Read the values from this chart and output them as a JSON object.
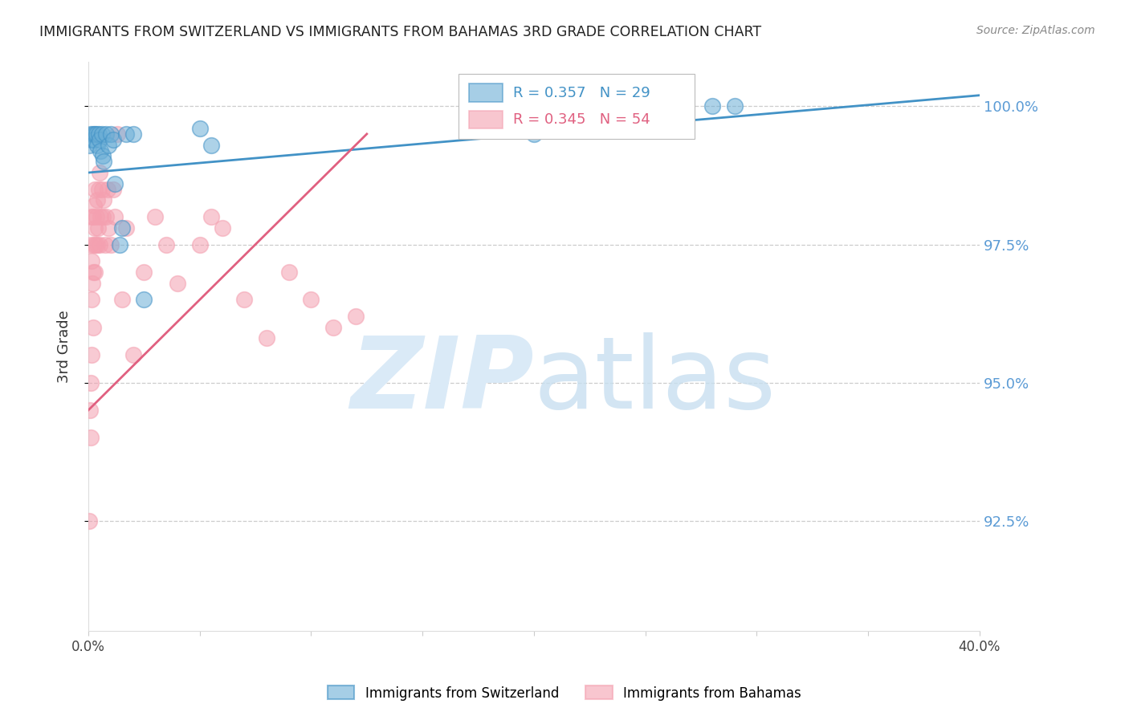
{
  "title": "IMMIGRANTS FROM SWITZERLAND VS IMMIGRANTS FROM BAHAMAS 3RD GRADE CORRELATION CHART",
  "source": "Source: ZipAtlas.com",
  "ylabel": "3rd Grade",
  "y_ticks": [
    92.5,
    95.0,
    97.5,
    100.0
  ],
  "y_tick_labels": [
    "92.5%",
    "95.0%",
    "97.5%",
    "100.0%"
  ],
  "x_min": 0.0,
  "x_max": 40.0,
  "y_min": 90.5,
  "y_max": 100.8,
  "R_switzerland": 0.357,
  "N_switzerland": 29,
  "R_bahamas": 0.345,
  "N_bahamas": 54,
  "color_switzerland": "#6baed6",
  "color_bahamas": "#f4a0b0",
  "color_trendline_switzerland": "#4292c6",
  "color_trendline_bahamas": "#e06080",
  "watermark_zip": "ZIP",
  "watermark_atlas": "atlas",
  "watermark_color": "#daeaf7",
  "legend_label_switzerland": "Immigrants from Switzerland",
  "legend_label_bahamas": "Immigrants from Bahamas",
  "switzerland_x": [
    0.05,
    0.1,
    0.15,
    0.2,
    0.25,
    0.3,
    0.35,
    0.4,
    0.45,
    0.5,
    0.55,
    0.6,
    0.65,
    0.7,
    0.8,
    0.9,
    1.0,
    1.1,
    1.2,
    1.4,
    1.5,
    1.7,
    2.0,
    2.5,
    5.0,
    5.5,
    20.0,
    28.0,
    29.0
  ],
  "switzerland_y": [
    99.3,
    99.5,
    99.4,
    99.5,
    99.4,
    99.5,
    99.5,
    99.3,
    99.5,
    99.4,
    99.2,
    99.5,
    99.1,
    99.0,
    99.5,
    99.3,
    99.5,
    99.4,
    98.6,
    97.5,
    97.8,
    99.5,
    99.5,
    96.5,
    99.6,
    99.3,
    99.5,
    100.0,
    100.0
  ],
  "bahamas_x": [
    0.05,
    0.08,
    0.1,
    0.1,
    0.12,
    0.13,
    0.15,
    0.15,
    0.15,
    0.18,
    0.2,
    0.2,
    0.22,
    0.25,
    0.25,
    0.28,
    0.3,
    0.3,
    0.32,
    0.35,
    0.38,
    0.4,
    0.42,
    0.45,
    0.5,
    0.5,
    0.55,
    0.6,
    0.65,
    0.7,
    0.75,
    0.8,
    0.85,
    0.9,
    1.0,
    1.1,
    1.2,
    1.3,
    1.5,
    1.7,
    2.0,
    2.5,
    3.0,
    3.5,
    4.0,
    5.0,
    5.5,
    6.0,
    7.0,
    8.0,
    9.0,
    10.0,
    11.0,
    12.0
  ],
  "bahamas_y": [
    92.5,
    94.5,
    95.0,
    97.5,
    94.0,
    95.5,
    96.5,
    97.2,
    98.0,
    96.8,
    97.0,
    98.0,
    96.0,
    97.5,
    98.2,
    97.0,
    97.8,
    98.5,
    97.5,
    98.0,
    97.5,
    98.3,
    97.8,
    98.5,
    97.5,
    98.8,
    98.0,
    98.5,
    98.0,
    98.3,
    97.5,
    98.0,
    98.5,
    97.8,
    97.5,
    98.5,
    98.0,
    99.5,
    96.5,
    97.8,
    95.5,
    97.0,
    98.0,
    97.5,
    96.8,
    97.5,
    98.0,
    97.8,
    96.5,
    95.8,
    97.0,
    96.5,
    96.0,
    96.2
  ],
  "sw_trend_x": [
    0.0,
    40.0
  ],
  "sw_trend_y": [
    98.8,
    100.2
  ],
  "bh_trend_x": [
    0.0,
    12.5
  ],
  "bh_trend_y": [
    94.5,
    99.5
  ]
}
